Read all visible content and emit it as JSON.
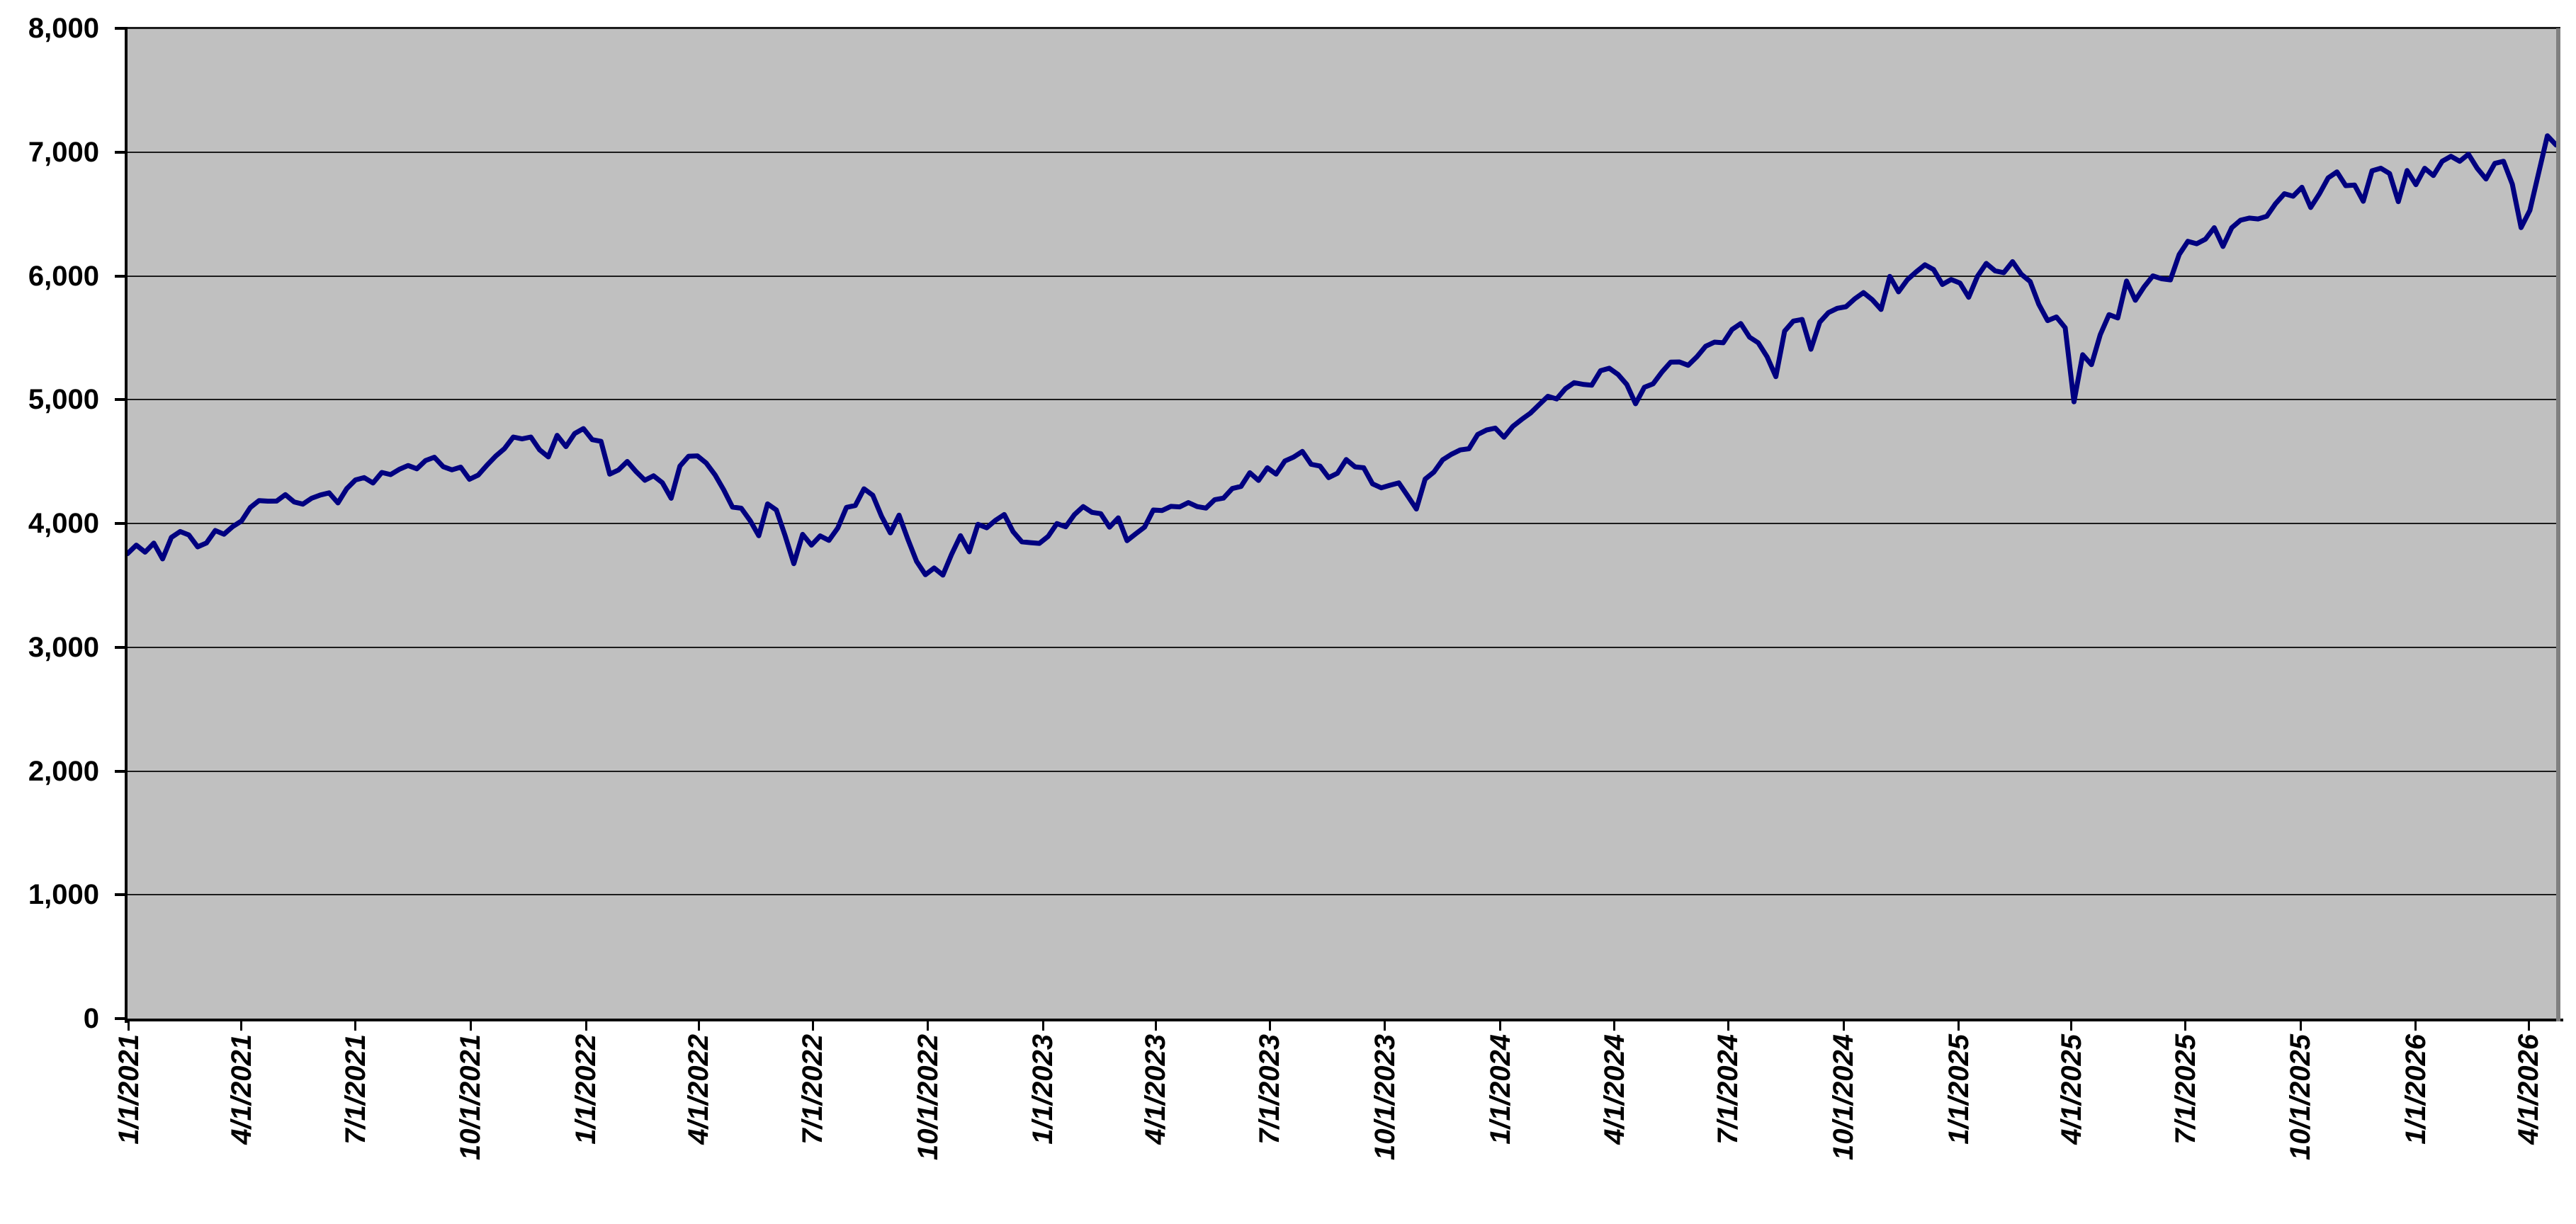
{
  "chart_data": {
    "type": "line",
    "title": "",
    "xlabel": "",
    "ylabel": "",
    "ylim": [
      0,
      8000
    ],
    "y_tick_interval": 1000,
    "grid": "horizontal",
    "legend_position": "none",
    "marker": "none",
    "colors": {
      "line": "#000080",
      "plot_background": "#c0c0c0",
      "gridline": "#1b1b1b",
      "axis": "#000000",
      "plot_border_shadow": "#808080",
      "outer_background": "#ffffff",
      "label_text": "#000000"
    },
    "y_axis": {
      "tick_labels": [
        "0",
        "1,000",
        "2,000",
        "3,000",
        "4,000",
        "5,000",
        "6,000",
        "7,000",
        "8,000"
      ]
    },
    "x_axis": {
      "tick_labels": [
        {
          "label": "1/1/2021",
          "day": 1
        },
        {
          "label": "4/1/2021",
          "day": 91
        },
        {
          "label": "7/1/2021",
          "day": 182
        },
        {
          "label": "10/1/2021",
          "day": 274
        },
        {
          "label": "1/1/2022",
          "day": 366
        },
        {
          "label": "4/1/2022",
          "day": 456
        },
        {
          "label": "7/1/2022",
          "day": 547
        },
        {
          "label": "10/1/2022",
          "day": 639
        },
        {
          "label": "1/1/2023",
          "day": 731
        },
        {
          "label": "4/1/2023",
          "day": 821
        },
        {
          "label": "7/1/2023",
          "day": 912
        },
        {
          "label": "10/1/2023",
          "day": 1004
        },
        {
          "label": "1/1/2024",
          "day": 1096
        },
        {
          "label": "4/1/2024",
          "day": 1187
        },
        {
          "label": "7/1/2024",
          "day": 1278
        },
        {
          "label": "10/1/2024",
          "day": 1370
        },
        {
          "label": "1/1/2025",
          "day": 1462
        },
        {
          "label": "4/1/2025",
          "day": 1552
        },
        {
          "label": "7/1/2025",
          "day": 1643
        },
        {
          "label": "10/1/2025",
          "day": 1735
        },
        {
          "label": "1/1/2026",
          "day": 1827
        },
        {
          "label": "4/1/2026",
          "day": 1917
        }
      ]
    },
    "series": [
      {
        "x_start_date": "12/31/2020",
        "x_interval_days": 7,
        "values": [
          3756,
          3825,
          3768,
          3841,
          3714,
          3887,
          3935,
          3907,
          3811,
          3842,
          3943,
          3913,
          3975,
          4020,
          4129,
          4185,
          4180,
          4181,
          4233,
          4174,
          4156,
          4204,
          4230,
          4247,
          4166,
          4281,
          4352,
          4370,
          4327,
          4412,
          4395,
          4437,
          4468,
          4442,
          4509,
          4535,
          4459,
          4433,
          4455,
          4357,
          4391,
          4471,
          4545,
          4605,
          4698,
          4683,
          4698,
          4595,
          4538,
          4712,
          4621,
          4726,
          4766,
          4677,
          4663,
          4398,
          4432,
          4501,
          4419,
          4349,
          4385,
          4329,
          4204,
          4463,
          4543,
          4546,
          4488,
          4393,
          4272,
          4132,
          4123,
          4024,
          3901,
          4158,
          4109,
          3901,
          3675,
          3912,
          3825,
          3899,
          3863,
          3962,
          4130,
          4145,
          4280,
          4228,
          4058,
          3924,
          4067,
          3873,
          3693,
          3586,
          3640,
          3583,
          3753,
          3901,
          3771,
          3993,
          3965,
          4026,
          4072,
          3934,
          3852,
          3845,
          3839,
          3895,
          3999,
          3973,
          4071,
          4136,
          4090,
          4079,
          3970,
          4045,
          3861,
          3917,
          3971,
          4109,
          4105,
          4138,
          4134,
          4169,
          4136,
          4124,
          4192,
          4205,
          4282,
          4299,
          4410,
          4348,
          4450,
          4399,
          4505,
          4536,
          4582,
          4478,
          4464,
          4370,
          4406,
          4516,
          4457,
          4450,
          4320,
          4288,
          4309,
          4328,
          4224,
          4117,
          4358,
          4415,
          4514,
          4559,
          4594,
          4604,
          4719,
          4755,
          4770,
          4697,
          4784,
          4840,
          4891,
          4959,
          5027,
          5006,
          5089,
          5137,
          5124,
          5117,
          5234,
          5254,
          5204,
          5123,
          4967,
          5100,
          5128,
          5223,
          5303,
          5305,
          5278,
          5347,
          5432,
          5465,
          5460,
          5567,
          5615,
          5505,
          5459,
          5347,
          5186,
          5554,
          5635,
          5648,
          5408,
          5626,
          5703,
          5738,
          5751,
          5815,
          5865,
          5808,
          5729,
          5996,
          5871,
          5969,
          6032,
          6090,
          6051,
          5931,
          5971,
          5942,
          5827,
          5997,
          6101,
          6041,
          6026,
          6115,
          6013,
          5955,
          5770,
          5639,
          5668,
          5581,
          4983,
          5363,
          5283,
          5525,
          5687,
          5660,
          5958,
          5803,
          5912,
          6000,
          5977,
          5968,
          6173,
          6279,
          6260,
          6297,
          6389,
          6238,
          6389,
          6450,
          6467,
          6460,
          6482,
          6584,
          6664,
          6644,
          6716,
          6553,
          6664,
          6792,
          6840,
          6729,
          6734,
          6603,
          6849,
          6870,
          6827,
          6600,
          6851,
          6737,
          6869,
          6811,
          6926,
          6966,
          6926,
          6983,
          6869,
          6783,
          6909,
          6926,
          6741,
          6390,
          6530,
          6830,
          7132,
          7057
        ]
      }
    ]
  }
}
